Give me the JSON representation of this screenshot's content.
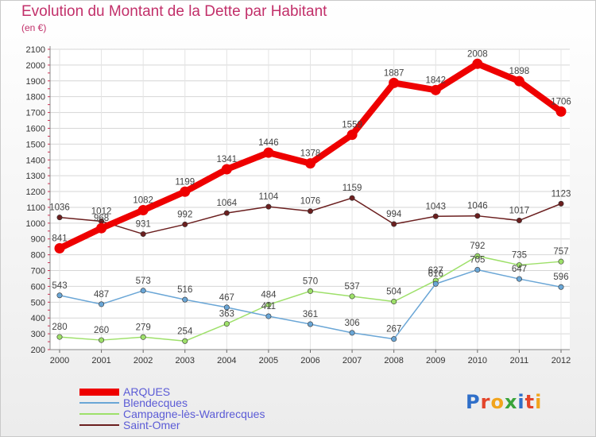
{
  "title": "Evolution du Montant de la Dette par Habitant",
  "subtitle": "(en €)",
  "logo": {
    "text": "Proxiti",
    "colors": [
      "#2f6fc9",
      "#e3452b",
      "#f1a41c",
      "#3aa43a",
      "#2f6fc9",
      "#e3452b",
      "#f1a41c"
    ]
  },
  "chart_data": {
    "type": "line",
    "x": [
      2000,
      2001,
      2002,
      2003,
      2004,
      2005,
      2006,
      2007,
      2008,
      2009,
      2010,
      2011,
      2012
    ],
    "ylim": [
      200,
      2100
    ],
    "yticks": [
      200,
      300,
      400,
      500,
      600,
      700,
      800,
      900,
      1000,
      1100,
      1200,
      1300,
      1400,
      1500,
      1600,
      1700,
      1800,
      1900,
      2000,
      2100
    ],
    "grid": true,
    "legend": "bottom-left",
    "series": [
      {
        "name": "Saint-Omer",
        "color": "#6b1f1f",
        "values": [
          1036,
          1012,
          931,
          992,
          1064,
          1104,
          1076,
          1159,
          994,
          1043,
          1046,
          1017,
          1123
        ]
      },
      {
        "name": "Campagne-lès-Wardrecques",
        "color": "#9ee06a",
        "values": [
          280,
          260,
          279,
          254,
          363,
          484,
          570,
          537,
          504,
          637,
          792,
          735,
          757
        ]
      },
      {
        "name": "Blendecques",
        "color": "#6aa6d6",
        "values": [
          543,
          487,
          573,
          516,
          467,
          411,
          361,
          306,
          267,
          616,
          705,
          647,
          596
        ]
      },
      {
        "name": "ARQUES",
        "color": "#ee0000",
        "values": [
          841,
          968,
          1082,
          1199,
          1341,
          1446,
          1378,
          1559,
          1887,
          1842,
          2008,
          1898,
          1706
        ]
      }
    ]
  }
}
